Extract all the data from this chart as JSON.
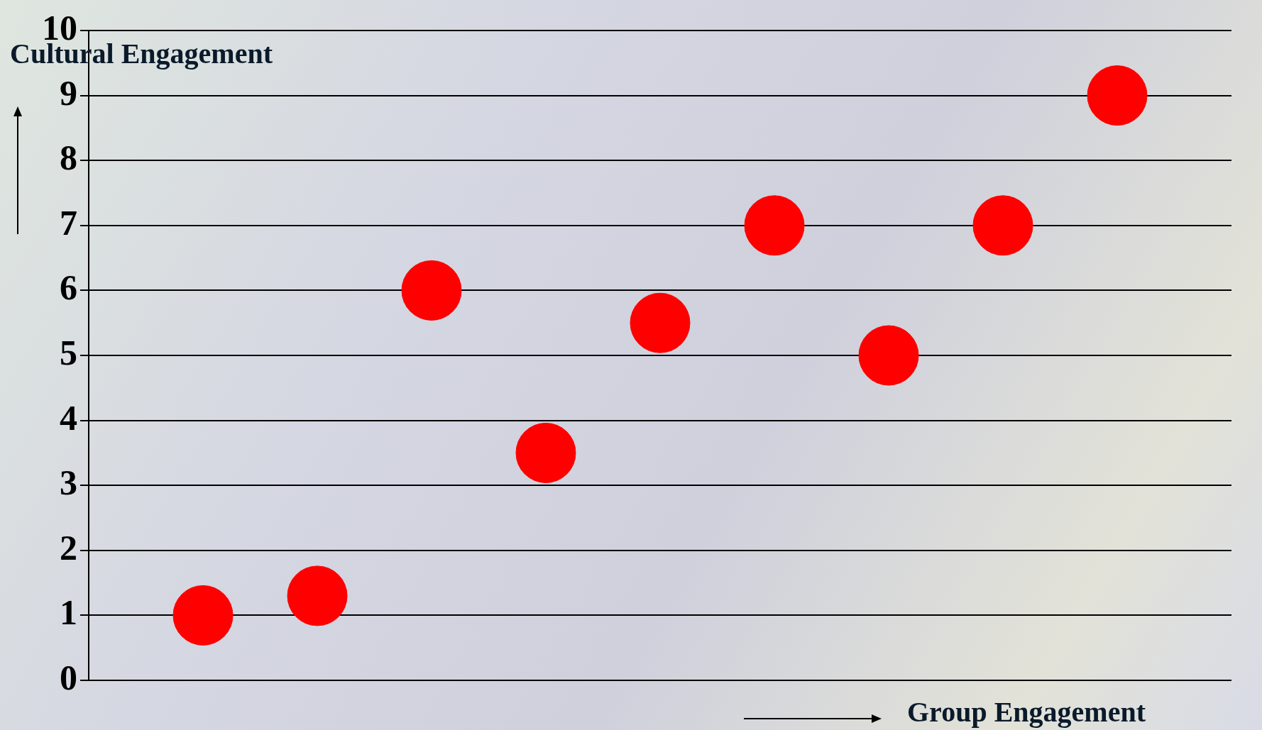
{
  "chart_data": {
    "type": "scatter",
    "xlabel": "Group Engagement",
    "ylabel": "Cultural Engagement",
    "categories": [
      null,
      null,
      null,
      null,
      null,
      null,
      null,
      null,
      null
    ],
    "series": [
      {
        "color": "#ff0000",
        "values": [
          1,
          1.3,
          6,
          3.5,
          5.5,
          7,
          5,
          7,
          9
        ]
      }
    ],
    "ylim": [
      0,
      10
    ],
    "yticks": [
      0,
      1,
      2,
      3,
      4,
      5,
      6,
      7,
      8,
      9,
      10
    ],
    "grid": "y",
    "legend": false,
    "marker": "circle",
    "tick_labels": "y"
  }
}
